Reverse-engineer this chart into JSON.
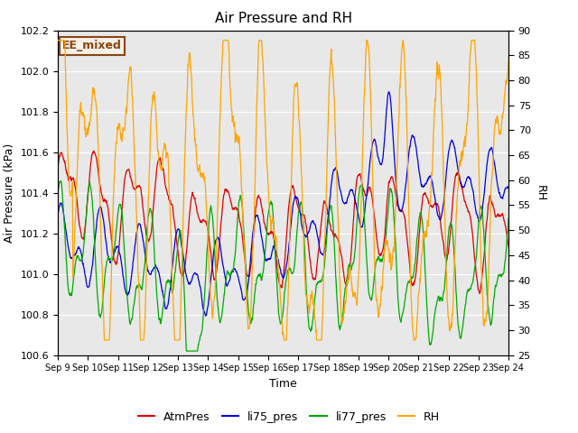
{
  "title": "Air Pressure and RH",
  "xlabel": "Time",
  "ylabel_left": "Air Pressure (kPa)",
  "ylabel_right": "RH",
  "ylim_left": [
    100.6,
    102.2
  ],
  "ylim_right": [
    25,
    90
  ],
  "annotation_text": "EE_mixed",
  "annotation_color": "#8B4513",
  "annotation_bg": "#F5F0E8",
  "annotation_border": "#8B4513",
  "series_colors": {
    "AtmPres": "#DD0000",
    "li75_pres": "#0000DD",
    "li77_pres": "#00AA00",
    "RH": "#FFA500"
  },
  "x_tick_labels": [
    "Sep 9",
    "Sep 10",
    "Sep 11",
    "Sep 12",
    "Sep 13",
    "Sep 14",
    "Sep 15",
    "Sep 16",
    "Sep 17",
    "Sep 18",
    "Sep 19",
    "Sep 20",
    "Sep 21",
    "Sep 22",
    "Sep 23",
    "Sep 24"
  ],
  "n_ticks": 16,
  "bg_color": "#E8E8E8",
  "fig_bg": "#FFFFFF",
  "grid_color": "#FFFFFF",
  "rh_yticks": [
    25,
    30,
    35,
    40,
    45,
    50,
    55,
    60,
    65,
    70,
    75,
    80,
    85,
    90
  ],
  "pres_yticks": [
    100.6,
    100.8,
    101.0,
    101.2,
    101.4,
    101.6,
    101.8,
    102.0,
    102.2
  ]
}
